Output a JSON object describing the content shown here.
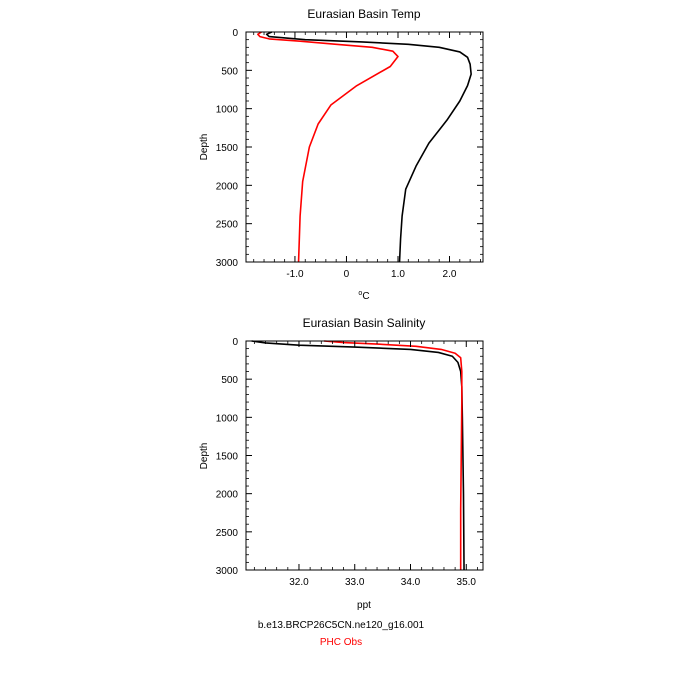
{
  "chart_data": [
    {
      "type": "line",
      "title": "Eurasian Basin Temp",
      "xlabel_unit": "C",
      "xlabel_degree": "o",
      "ylabel": "Depth",
      "xlim": [
        -1.95,
        2.65
      ],
      "ylim": [
        3000,
        0
      ],
      "xticks": [
        -1.0,
        0.0,
        1.0,
        2.0
      ],
      "xtick_labels": [
        "-1.0",
        "0",
        "1.0",
        "2.0"
      ],
      "yticks": [
        0,
        500,
        1000,
        1500,
        2000,
        2500,
        3000
      ],
      "ytick_labels": [
        "0",
        "500",
        "1000",
        "1500",
        "2000",
        "2500",
        "3000"
      ],
      "series": [
        {
          "name": "b.e13.BRCP26C5CN.ne120_g16.001",
          "color": "#000000",
          "points": [
            [
              -1.45,
              0
            ],
            [
              -1.55,
              30
            ],
            [
              -1.5,
              60
            ],
            [
              -0.8,
              100
            ],
            [
              0.3,
              130
            ],
            [
              1.2,
              160
            ],
            [
              1.8,
              200
            ],
            [
              2.2,
              260
            ],
            [
              2.35,
              330
            ],
            [
              2.4,
              420
            ],
            [
              2.42,
              550
            ],
            [
              2.35,
              700
            ],
            [
              2.2,
              900
            ],
            [
              1.95,
              1150
            ],
            [
              1.6,
              1450
            ],
            [
              1.35,
              1750
            ],
            [
              1.15,
              2050
            ],
            [
              1.08,
              2400
            ],
            [
              1.05,
              2700
            ],
            [
              1.03,
              3000
            ]
          ]
        },
        {
          "name": "PHC Obs",
          "color": "#ff0000",
          "points": [
            [
              -1.65,
              0
            ],
            [
              -1.72,
              30
            ],
            [
              -1.68,
              60
            ],
            [
              -1.5,
              90
            ],
            [
              -0.9,
              120
            ],
            [
              -0.2,
              160
            ],
            [
              0.5,
              200
            ],
            [
              0.9,
              250
            ],
            [
              1.0,
              320
            ],
            [
              0.85,
              450
            ],
            [
              0.2,
              700
            ],
            [
              -0.3,
              950
            ],
            [
              -0.55,
              1200
            ],
            [
              -0.72,
              1500
            ],
            [
              -0.85,
              1950
            ],
            [
              -0.9,
              2400
            ],
            [
              -0.93,
              3000
            ]
          ]
        }
      ]
    },
    {
      "type": "line",
      "title": "Eurasian Basin Salinity",
      "xlabel": "ppt",
      "ylabel": "Depth",
      "xlim": [
        31.05,
        35.3
      ],
      "ylim": [
        3000,
        0
      ],
      "xticks": [
        32.0,
        33.0,
        34.0,
        35.0
      ],
      "xtick_labels": [
        "32.0",
        "33.0",
        "34.0",
        "35.0"
      ],
      "yticks": [
        0,
        500,
        1000,
        1500,
        2000,
        2500,
        3000
      ],
      "ytick_labels": [
        "0",
        "500",
        "1000",
        "1500",
        "2000",
        "2500",
        "3000"
      ],
      "series": [
        {
          "name": "b.e13.BRCP26C5CN.ne120_g16.001",
          "color": "#000000",
          "points": [
            [
              31.15,
              0
            ],
            [
              31.4,
              25
            ],
            [
              32.0,
              55
            ],
            [
              33.0,
              80
            ],
            [
              34.0,
              110
            ],
            [
              34.5,
              150
            ],
            [
              34.75,
              200
            ],
            [
              34.85,
              280
            ],
            [
              34.9,
              400
            ],
            [
              34.92,
              600
            ],
            [
              34.93,
              1000
            ],
            [
              34.95,
              2000
            ],
            [
              34.96,
              3000
            ]
          ]
        },
        {
          "name": "PHC Obs",
          "color": "#ff0000",
          "points": [
            [
              32.45,
              0
            ],
            [
              32.8,
              20
            ],
            [
              33.4,
              40
            ],
            [
              34.1,
              70
            ],
            [
              34.55,
              110
            ],
            [
              34.8,
              160
            ],
            [
              34.9,
              220
            ],
            [
              34.92,
              400
            ],
            [
              34.92,
              800
            ],
            [
              34.91,
              1500
            ],
            [
              34.9,
              2200
            ],
            [
              34.9,
              3000
            ]
          ]
        }
      ]
    }
  ],
  "legend": {
    "entries": [
      {
        "label": "b.e13.BRCP26C5CN.ne120_g16.001",
        "color": "#000000"
      },
      {
        "label": "PHC Obs",
        "color": "#ff0000"
      }
    ]
  }
}
